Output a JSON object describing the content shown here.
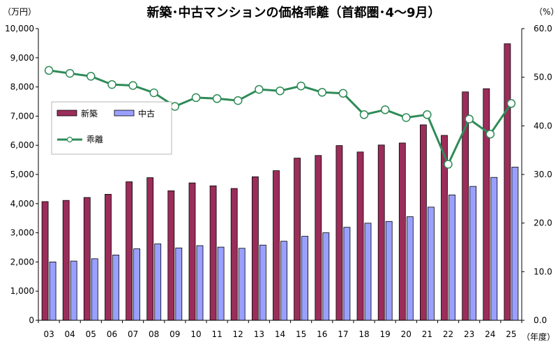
{
  "chart_data": {
    "type": "bar+line",
    "title": "新築･中古マンションの価格乖離（首都圏･4～9月）",
    "left_unit": "（万円）",
    "right_unit": "（%）",
    "x_unit": "（年度）",
    "categories": [
      "03",
      "04",
      "05",
      "06",
      "07",
      "08",
      "09",
      "10",
      "11",
      "12",
      "13",
      "14",
      "15",
      "16",
      "17",
      "18",
      "19",
      "20",
      "21",
      "22",
      "23",
      "24",
      "25"
    ],
    "left_axis": {
      "min": 0,
      "max": 10000,
      "step": 1000,
      "tick_labels": [
        "0",
        "1,000",
        "2,000",
        "3,000",
        "4,000",
        "5,000",
        "6,000",
        "7,000",
        "8,000",
        "9,000",
        "10,000"
      ]
    },
    "right_axis": {
      "min": 0,
      "max": 60,
      "step": 10,
      "tick_labels": [
        "0.0",
        "10.0",
        "20.0",
        "30.0",
        "40.0",
        "50.0",
        "60.0"
      ]
    },
    "series": [
      {
        "name": "新築",
        "type": "bar",
        "axis": "left",
        "color": "#9b2d5a",
        "values": [
          4070,
          4110,
          4210,
          4320,
          4750,
          4890,
          4440,
          4710,
          4610,
          4520,
          4920,
          5130,
          5560,
          5650,
          5990,
          5770,
          6010,
          6080,
          6700,
          6340,
          7830,
          7940,
          9480
        ]
      },
      {
        "name": "中古",
        "type": "bar",
        "axis": "left",
        "color": "#9aa0ff",
        "values": [
          2000,
          2030,
          2110,
          2240,
          2450,
          2620,
          2480,
          2560,
          2510,
          2470,
          2580,
          2710,
          2880,
          3000,
          3190,
          3330,
          3390,
          3550,
          3880,
          4300,
          4590,
          4900,
          5250
        ]
      },
      {
        "name": "乖離",
        "type": "line",
        "axis": "right",
        "color": "#2e8b57",
        "marker_fill": "#ffffff",
        "values": [
          51.4,
          50.8,
          50.2,
          48.5,
          48.3,
          46.8,
          44.0,
          45.8,
          45.6,
          45.2,
          47.5,
          47.2,
          48.2,
          46.9,
          46.7,
          42.3,
          43.3,
          41.7,
          42.3,
          32.1,
          41.4,
          38.3,
          44.6
        ]
      }
    ],
    "legend_position": "left-middle",
    "grid": false
  }
}
